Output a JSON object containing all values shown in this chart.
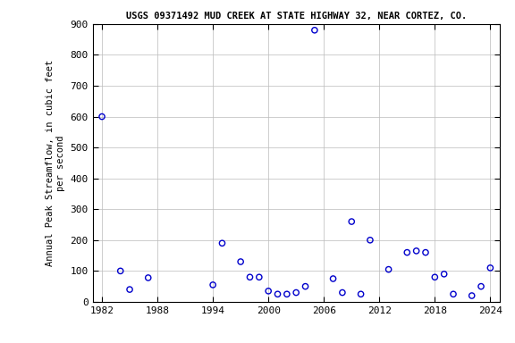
{
  "title": "USGS 09371492 MUD CREEK AT STATE HIGHWAY 32, NEAR CORTEZ, CO.",
  "ylabel_line1": "Annual Peak Streamflow, in cubic feet",
  "ylabel_line2": "per second",
  "all_years": [
    1982,
    1984,
    1985,
    1987,
    1994,
    1995,
    1997,
    1998,
    1999,
    2000,
    2001,
    2002,
    2003,
    2004,
    2005,
    2007,
    2008,
    2009,
    2010,
    2011,
    2013,
    2015,
    2016,
    2017,
    2018,
    2019,
    2020,
    2022,
    2023,
    2024
  ],
  "all_values": [
    600,
    100,
    40,
    78,
    55,
    190,
    130,
    80,
    80,
    35,
    25,
    25,
    30,
    50,
    880,
    75,
    30,
    260,
    25,
    200,
    105,
    160,
    165,
    160,
    80,
    90,
    25,
    20,
    50,
    110
  ],
  "marker_color": "#0000CC",
  "marker_size": 4.5,
  "marker_linewidth": 1.0,
  "xlim": [
    1981,
    2025
  ],
  "ylim": [
    0,
    900
  ],
  "xticks": [
    1982,
    1988,
    1994,
    2000,
    2006,
    2012,
    2018,
    2024
  ],
  "yticks": [
    0,
    100,
    200,
    300,
    400,
    500,
    600,
    700,
    800,
    900
  ],
  "grid_color": "#bbbbbb",
  "grid_linewidth": 0.5,
  "bg_color": "#ffffff",
  "title_fontsize": 7.5,
  "label_fontsize": 7.5,
  "tick_fontsize": 8
}
